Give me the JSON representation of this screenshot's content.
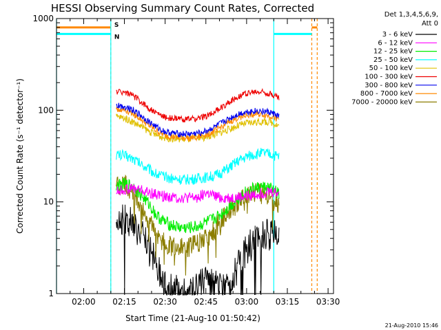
{
  "chart_data": {
    "type": "line",
    "title": "HESSI Observing Summary Count Rates, Corrected",
    "xlabel": "Start Time (21-Aug-10 01:50:42)",
    "ylabel": "Corrected Count Rate (s⁻¹ detector⁻¹)",
    "yscale": "log",
    "ylim": [
      1,
      1000
    ],
    "y_ticks": [
      1,
      10,
      100,
      1000
    ],
    "y_tick_labels": [
      "1",
      "10",
      "100",
      "1000"
    ],
    "xlim": [
      "01:50",
      "03:32"
    ],
    "x_ticks": [
      "02:00",
      "02:15",
      "02:30",
      "02:45",
      "03:00",
      "03:15",
      "03:30"
    ],
    "x_tick_labels": [
      "02:00",
      "02:15",
      "02:30",
      "02:45",
      "03:00",
      "03:15",
      "03:30"
    ],
    "x": [
      "02:12",
      "02:15",
      "02:18",
      "02:21",
      "02:24",
      "02:27",
      "02:30",
      "02:33",
      "02:36",
      "02:39",
      "02:42",
      "02:45",
      "02:48",
      "02:51",
      "02:54",
      "02:57",
      "03:00",
      "03:03",
      "03:06",
      "03:09",
      "03:12"
    ],
    "legend_header": [
      "Det 1,3,4,5,6,9,",
      "Att 0"
    ],
    "legend_position": "top-right, outside plot",
    "series": [
      {
        "name": "3 - 6 keV",
        "color": "#000000",
        "values": [
          6.5,
          6.5,
          6,
          4.5,
          3,
          2,
          1.4,
          1.1,
          1.0,
          1.0,
          1.2,
          1.3,
          1.2,
          1.1,
          1.4,
          2,
          3,
          3.8,
          4.3,
          4.5,
          4.3
        ]
      },
      {
        "name": "6 - 12 keV",
        "color": "#ff00ff",
        "values": [
          13,
          13.5,
          14,
          13.5,
          12.5,
          12,
          11.5,
          11.2,
          11,
          11,
          11.2,
          12.5,
          11.5,
          11,
          11,
          11.2,
          11.5,
          12,
          12.5,
          13,
          12.5
        ]
      },
      {
        "name": "12 - 25 keV",
        "color": "#00ee00",
        "values": [
          15,
          15.5,
          15,
          12,
          9.5,
          7,
          6,
          5.5,
          5.2,
          5.2,
          5.4,
          6,
          6.5,
          7.5,
          9,
          11,
          13,
          14,
          14.5,
          14,
          12
        ]
      },
      {
        "name": "25 - 50 keV",
        "color": "#00ffff",
        "values": [
          33,
          32,
          30,
          26,
          23,
          20,
          18.5,
          18,
          17.5,
          17.5,
          18,
          18.5,
          19,
          21,
          24,
          28,
          31,
          33,
          34,
          33,
          31
        ]
      },
      {
        "name": "50 - 100 keV",
        "color": "#e0c000",
        "values": [
          85,
          82,
          75,
          67,
          59,
          53,
          50,
          49,
          48.5,
          48.5,
          49,
          51,
          54,
          58,
          63,
          68,
          72,
          74,
          75,
          74,
          68
        ]
      },
      {
        "name": "100 - 300 keV",
        "color": "#ee0000",
        "values": [
          160,
          158,
          145,
          125,
          105,
          92,
          84,
          81,
          80,
          80,
          81,
          86,
          95,
          108,
          125,
          142,
          153,
          157,
          158,
          150,
          135
        ]
      },
      {
        "name": "300 - 800 keV",
        "color": "#0000ee",
        "values": [
          112,
          110,
          102,
          88,
          75,
          65,
          58,
          56,
          55,
          55,
          56,
          59,
          65,
          73,
          82,
          91,
          96,
          98,
          98,
          94,
          86
        ]
      },
      {
        "name": "800 - 7000 keV",
        "color": "#ff8800",
        "values": [
          103,
          101,
          93,
          80,
          68,
          59,
          53,
          51,
          50,
          50,
          51,
          54,
          59,
          67,
          75,
          83,
          88,
          90,
          90,
          86,
          79
        ]
      },
      {
        "name": "7000 - 20000 keV",
        "color": "#8b7d00",
        "values": [
          16,
          15,
          13,
          9,
          6,
          4.5,
          3.5,
          3.2,
          3.2,
          3.3,
          3.5,
          4,
          5,
          6.5,
          8.5,
          10.5,
          12,
          12.5,
          12,
          11,
          9
        ]
      }
    ],
    "flags": {
      "saa": {
        "label": "S",
        "color": "#ff8800",
        "level": 800,
        "intervals": [
          [
            "01:50",
            "02:10"
          ],
          [
            "03:24",
            "03:26"
          ]
        ],
        "boundaries": [
          "02:10",
          "03:24",
          "03:26"
        ]
      },
      "night": {
        "label": "N",
        "color": "#00ffff",
        "level": 680,
        "intervals": [
          [
            "01:50",
            "02:10"
          ],
          [
            "03:10",
            "03:24"
          ]
        ],
        "boundaries": [
          "01:50",
          "02:10",
          "03:10"
        ]
      }
    },
    "grid": false
  },
  "corner_stamp": "21-Aug-2010 15:46"
}
